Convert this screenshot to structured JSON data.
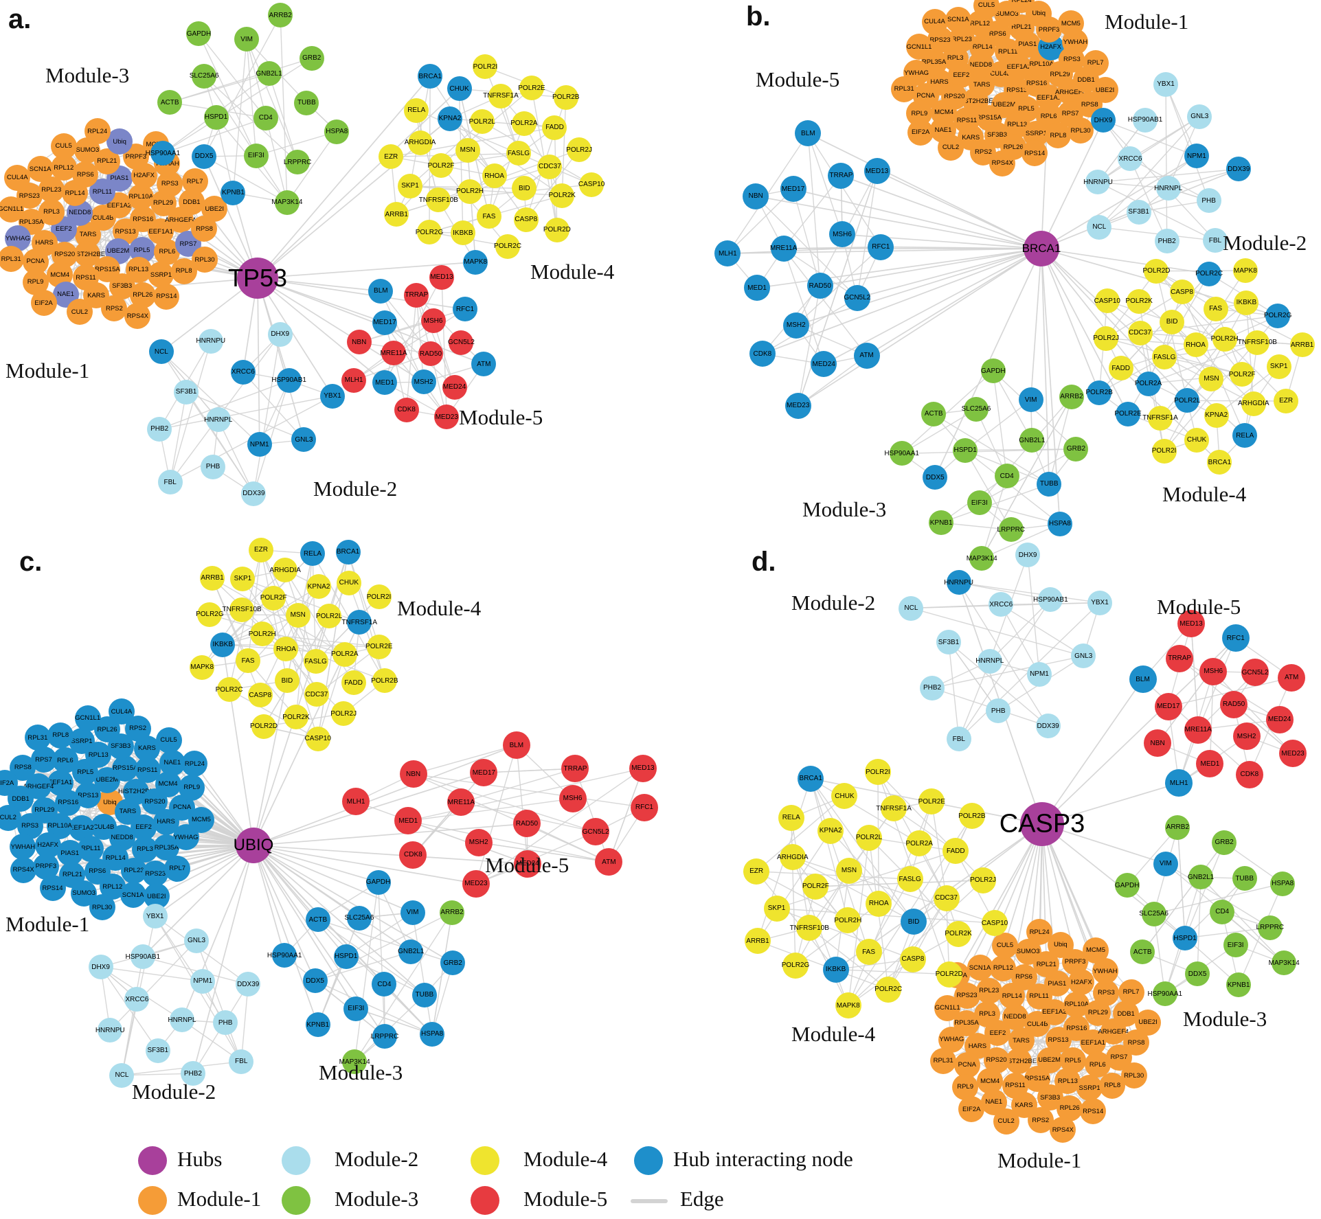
{
  "colors": {
    "hub": "#A8409B",
    "module1": "#F59C37",
    "module2": "#AADDEC",
    "module3": "#7FC241",
    "module4": "#EFE42E",
    "module5": "#E73B40",
    "interacting": "#1E8FCB",
    "slate": "#7B86C8",
    "edge": "#D3D3D3"
  },
  "gene_sets": {
    "module1": [
      "CUL4B",
      "RPS13",
      "TARS",
      "EEF1A2",
      "UBE2M",
      "NEDD8",
      "RPS16",
      "HIST2H2BE",
      "RPL11",
      "RPL5",
      "EEF2",
      "RPL10A",
      "RPS15A",
      "RPL14",
      "EEF1A1",
      "RPS20",
      "PIAS1",
      "RPL13",
      "RPL3",
      "RPL29",
      "RPS11",
      "RPS6",
      "RPL6",
      "HARS",
      "H2AFX",
      "SF3B3",
      "RPL23",
      "ARHGEF4",
      "MCM4",
      "RPL21",
      "SSRP1",
      "RPL35A",
      "RPS3",
      "KARS",
      "RPL12",
      "RPS7",
      "PCNA",
      "PRPF3",
      "RPL26",
      "RPS23",
      "DDB1",
      "NAE1",
      "SUMO3",
      "RPL8",
      "YWHAG",
      "YWHAH",
      "RPS2",
      "SCN1A",
      "RPS8",
      "RPL9",
      "Ubiq",
      "RPS14",
      "GCN1L1",
      "RPL7",
      "CUL2",
      "CUL5",
      "RPL30",
      "RPL31",
      "MCM5",
      "RPS4X",
      "CUL4A",
      "UBE2I",
      "EIF2A",
      "RPL24"
    ],
    "module2": [
      "HNRNPL",
      "XRCC6",
      "NPM1",
      "SF3B1",
      "HSP90AB1",
      "PHB",
      "HNRNPU",
      "GNL3",
      "PHB2",
      "DHX9",
      "DDX39",
      "NCL",
      "YBX1",
      "FBL"
    ],
    "module3": [
      "CD4",
      "HSPD1",
      "GNB2L1",
      "EIF3I",
      "SLC25A6",
      "TUBB",
      "DDX5",
      "VIM",
      "LRPPRC",
      "ACTB",
      "GRB2",
      "KPNB1",
      "GAPDH",
      "HSPA8",
      "HSP90AA1",
      "ARRB2",
      "MAP3K14"
    ],
    "module4": [
      "RHOA",
      "MSN",
      "FASLG",
      "POLR2H",
      "POLR2L",
      "BID",
      "POLR2F",
      "POLR2A",
      "FAS",
      "KPNA2",
      "CDC37",
      "TNFRSF10B",
      "TNFRSF1A",
      "CASP8",
      "ARHGDIA",
      "FADD",
      "IKBKB",
      "CHUK",
      "POLR2K",
      "SKP1",
      "POLR2E",
      "POLR2C",
      "RELA",
      "POLR2J",
      "POLR2G",
      "POLR2I",
      "POLR2D",
      "EZR",
      "POLR2B",
      "MAPK8",
      "BRCA1",
      "CASP10",
      "ARRB1"
    ],
    "module5": [
      "RAD50",
      "MRE11A",
      "MSH6",
      "MSH2",
      "MED17",
      "GCN5L2",
      "MED1",
      "TRRAP",
      "MED24",
      "NBN",
      "RFC1",
      "CDK8",
      "BLM",
      "ATM",
      "MLH1",
      "MED13",
      "MED23"
    ]
  },
  "panels": [
    {
      "id": "a",
      "letter": "a.",
      "hub": {
        "label": "TP53"
      },
      "clusters": [
        {
          "name": "module-1",
          "label": "Module-1",
          "set": "module1",
          "base_color": "module1",
          "overrides": {
            "UBE2M": "slate",
            "NEDD8": "slate",
            "RPL11": "slate",
            "RPL5": "slate",
            "EEF2": "slate",
            "PIAS1": "slate",
            "RPS7": "slate",
            "NAE1": "slate",
            "Ubiq": "slate",
            "YWHAG": "slate"
          }
        },
        {
          "name": "module-2",
          "label": "Module-2",
          "set": "module2",
          "base_color": "module2",
          "overrides": {
            "XRCC6": "interacting",
            "NPM1": "interacting",
            "HSP90AB1": "interacting",
            "GNL3": "interacting",
            "NCL": "interacting",
            "YBX1": "interacting"
          }
        },
        {
          "name": "module-3",
          "label": "Module-3",
          "set": "module3",
          "base_color": "module3",
          "overrides": {
            "DDX5": "interacting",
            "KPNB1": "interacting",
            "HSP90AA1": "interacting"
          }
        },
        {
          "name": "module-4",
          "label": "Module-4",
          "set": "module4",
          "base_color": "module4",
          "overrides": {
            "KPNA2": "interacting",
            "CHUK": "interacting",
            "MAPK8": "interacting",
            "BRCA1": "interacting"
          }
        },
        {
          "name": "module-5",
          "label": "Module-5",
          "set": "module5",
          "base_color": "module5",
          "overrides": {
            "MSH2": "interacting",
            "MED17": "interacting",
            "MED1": "interacting",
            "RFC1": "interacting",
            "BLM": "interacting",
            "ATM": "interacting"
          }
        }
      ]
    },
    {
      "id": "b",
      "letter": "b.",
      "hub": {
        "label": "BRCA1"
      },
      "clusters": [
        {
          "name": "module-1",
          "label": "Module-1",
          "set": "module1",
          "base_color": "module1",
          "overrides": {
            "H2AFX": "interacting"
          }
        },
        {
          "name": "module-2",
          "label": "Module-2",
          "set": "module2",
          "base_color": "module2",
          "overrides": {
            "NPM1": "interacting",
            "DHX9": "interacting",
            "DDX39": "interacting"
          }
        },
        {
          "name": "module-3",
          "label": "Module-3",
          "set": "module3",
          "base_color": "module3",
          "overrides": {
            "TUBB": "interacting",
            "HSPA8": "interacting",
            "VIM": "interacting",
            "DDX5": "interacting"
          }
        },
        {
          "name": "module-4",
          "label": "Module-4",
          "set": "module4",
          "base_color": "module4",
          "overrides": {
            "POLR2A": "interacting",
            "POLR2B": "interacting",
            "POLR2C": "interacting",
            "POLR2L": "interacting",
            "POLR2E": "interacting",
            "POLR2G": "interacting",
            "RELA": "interacting"
          }
        },
        {
          "name": "module-5",
          "label": "Module-5",
          "set": "module5",
          "base_color": "interacting",
          "overrides": {}
        }
      ]
    },
    {
      "id": "c",
      "letter": "c.",
      "hub": {
        "label": "UBIQ"
      },
      "clusters": [
        {
          "name": "module-1",
          "label": "Module-1",
          "set": "module1",
          "base_color": "interacting",
          "center_node": "Ubiq",
          "overrides": {
            "Ubiq": "module1"
          }
        },
        {
          "name": "module-2",
          "label": "Module-2",
          "set": "module2",
          "base_color": "module2",
          "overrides": {}
        },
        {
          "name": "module-3",
          "label": "Module-3",
          "set": "module3",
          "base_color": "interacting",
          "overrides": {
            "ARRB2": "module3",
            "MAP3K14": "module3"
          }
        },
        {
          "name": "module-4",
          "label": "Module-4",
          "set": "module4",
          "base_color": "module4",
          "overrides": {
            "BRCA1": "interacting",
            "IKBKB": "interacting",
            "TNFRSF1A": "interacting",
            "RELA": "interacting"
          }
        },
        {
          "name": "module-5",
          "label": "Module-5",
          "set": "module5",
          "base_color": "module5",
          "overrides": {}
        }
      ]
    },
    {
      "id": "d",
      "letter": "d.",
      "hub": {
        "label": "CASP3"
      },
      "clusters": [
        {
          "name": "module-1",
          "label": "Module-1",
          "set": "module1",
          "base_color": "module1",
          "overrides": {}
        },
        {
          "name": "module-2",
          "label": "Module-2",
          "set": "module2",
          "base_color": "module2",
          "overrides": {
            "HNRNPU": "interacting"
          }
        },
        {
          "name": "module-3",
          "label": "Module-3",
          "set": "module3",
          "base_color": "module3",
          "overrides": {
            "VIM": "interacting",
            "HSPD1": "interacting"
          }
        },
        {
          "name": "module-4",
          "label": "Module-4",
          "set": "module4",
          "base_color": "module4",
          "overrides": {
            "BRCA1": "interacting",
            "BID": "interacting",
            "IKBKB": "interacting"
          }
        },
        {
          "name": "module-5",
          "label": "Module-5",
          "set": "module5",
          "base_color": "module5",
          "overrides": {
            "RFC1": "interacting",
            "MLH1": "interacting",
            "BLM": "interacting"
          }
        }
      ]
    }
  ],
  "legend": {
    "items": [
      {
        "label": "Hubs",
        "color": "hub"
      },
      {
        "label": "Module-1",
        "color": "module1"
      },
      {
        "label": "Module-2",
        "color": "module2"
      },
      {
        "label": "Module-3",
        "color": "module3"
      },
      {
        "label": "Module-4",
        "color": "module4"
      },
      {
        "label": "Module-5",
        "color": "module5"
      },
      {
        "label": "Hub interacting node",
        "color": "interacting"
      },
      {
        "label": "Edge",
        "color": "edge"
      }
    ]
  }
}
